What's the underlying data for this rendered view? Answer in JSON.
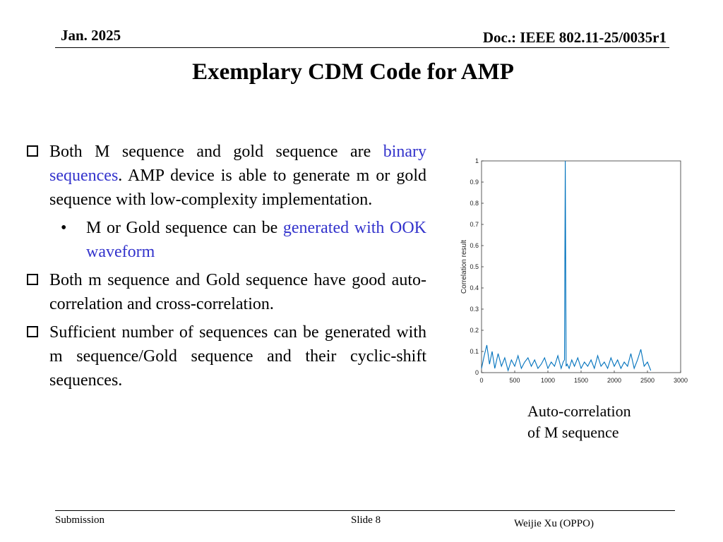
{
  "header": {
    "date": "Jan. 2025",
    "doc": "Doc.: IEEE 802.11-25/0035r1"
  },
  "title": "Exemplary CDM Code for AMP",
  "bullets": [
    {
      "parts": [
        "Both M sequence and gold sequence are ",
        "binary sequences",
        ". AMP device is able to generate m or gold sequence with low-complexity implementation."
      ]
    },
    {
      "sub_parts": [
        "M  or Gold sequence can be ",
        "generated with OOK waveform"
      ]
    },
    {
      "text": "Both m sequence and Gold sequence have good auto-correlation and cross-correlation."
    },
    {
      "text": "Sufficient number of sequences can be generated with m sequence/Gold sequence and their cyclic-shift sequences."
    }
  ],
  "caption": {
    "line1": "Auto-correlation",
    "line2": "of M sequence"
  },
  "chart_data": {
    "type": "line",
    "ylabel": "Correlation result",
    "xlim": [
      0,
      3000
    ],
    "ylim": [
      0,
      1
    ],
    "x_ticks": [
      "0",
      "500",
      "1000",
      "1500",
      "2000",
      "2500",
      "3000"
    ],
    "y_ticks": [
      "0",
      "0.1",
      "0.2",
      "0.3",
      "0.4",
      "0.5",
      "0.6",
      "0.7",
      "0.8",
      "0.9",
      "1"
    ],
    "series": [
      {
        "color": "#0072bd",
        "x": [
          0,
          40,
          80,
          120,
          160,
          200,
          250,
          300,
          350,
          400,
          450,
          500,
          550,
          600,
          650,
          700,
          750,
          800,
          850,
          900,
          950,
          1000,
          1050,
          1100,
          1150,
          1200,
          1230,
          1250,
          1262,
          1275,
          1290,
          1320,
          1360,
          1400,
          1450,
          1500,
          1550,
          1600,
          1650,
          1700,
          1750,
          1800,
          1850,
          1900,
          1950,
          2000,
          2050,
          2100,
          2150,
          2200,
          2250,
          2300,
          2350,
          2400,
          2450,
          2500,
          2550
        ],
        "y": [
          0.02,
          0.08,
          0.13,
          0.04,
          0.1,
          0.02,
          0.09,
          0.03,
          0.07,
          0.01,
          0.06,
          0.03,
          0.08,
          0.02,
          0.05,
          0.07,
          0.03,
          0.06,
          0.02,
          0.04,
          0.07,
          0.02,
          0.05,
          0.03,
          0.08,
          0.02,
          0.05,
          0.06,
          1.0,
          0.03,
          0.04,
          0.02,
          0.06,
          0.03,
          0.07,
          0.02,
          0.05,
          0.03,
          0.06,
          0.02,
          0.08,
          0.03,
          0.05,
          0.02,
          0.07,
          0.03,
          0.06,
          0.02,
          0.05,
          0.03,
          0.09,
          0.02,
          0.06,
          0.11,
          0.03,
          0.05,
          0.01
        ]
      }
    ]
  },
  "footer": {
    "left": "Submission",
    "slide": "Slide 8",
    "author": "Weijie Xu (OPPO)"
  }
}
